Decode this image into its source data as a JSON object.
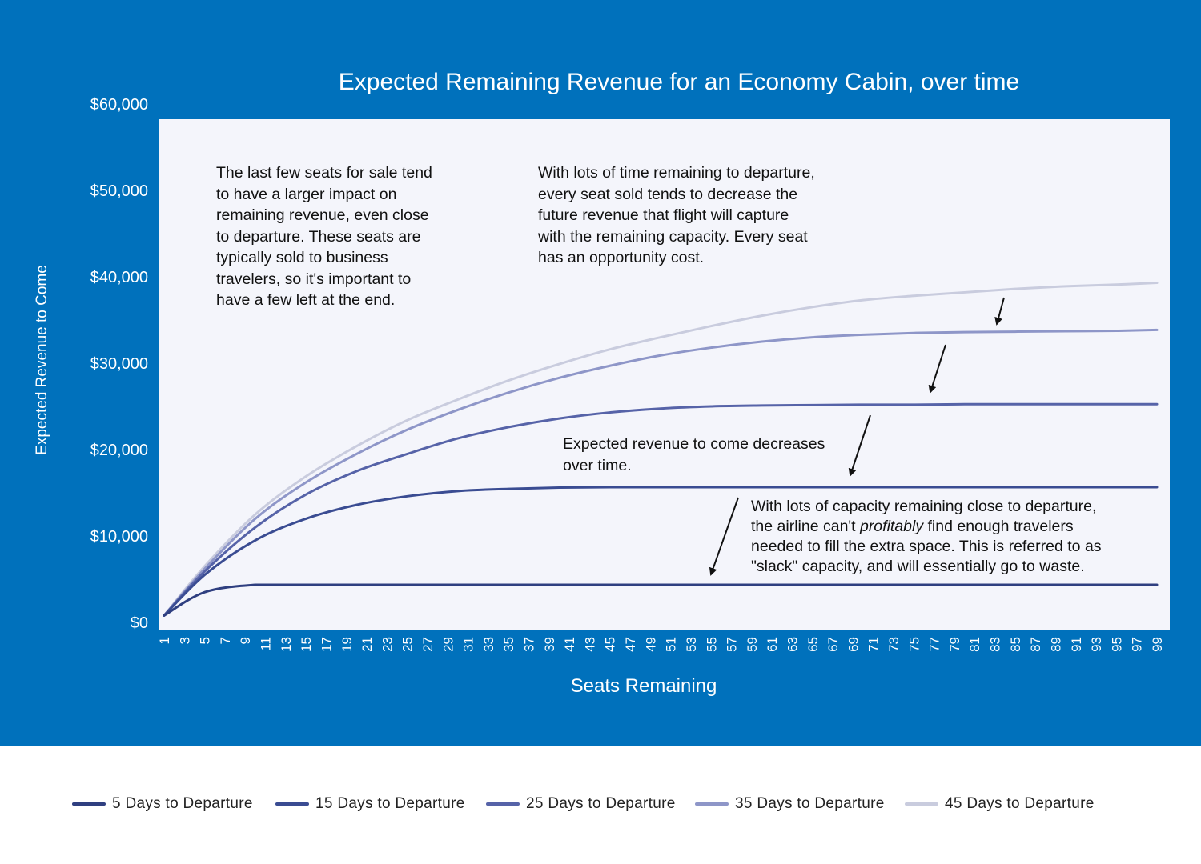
{
  "chart_data": {
    "type": "line",
    "title": "Expected Remaining Revenue for an Economy Cabin, over time",
    "xlabel": "Seats Remaining",
    "ylabel": "Expected Revenue to Come",
    "x_range": [
      1,
      99
    ],
    "x_tick_labels": [
      "1",
      "3",
      "5",
      "7",
      "9",
      "11",
      "13",
      "15",
      "17",
      "19",
      "21",
      "23",
      "25",
      "27",
      "29",
      "31",
      "33",
      "35",
      "37",
      "39",
      "41",
      "43",
      "45",
      "47",
      "49",
      "51",
      "53",
      "55",
      "57",
      "59",
      "61",
      "63",
      "65",
      "67",
      "69",
      "71",
      "73",
      "75",
      "77",
      "79",
      "81",
      "83",
      "85",
      "87",
      "89",
      "91",
      "93",
      "95",
      "97",
      "99"
    ],
    "ylim": [
      0,
      60000
    ],
    "y_ticks": [
      0,
      10000,
      20000,
      30000,
      40000,
      50000,
      60000
    ],
    "y_tick_labels": [
      "$0",
      "$10,000",
      "$20,000",
      "$30,000",
      "$40,000",
      "$50,000",
      "$60,000"
    ],
    "grid": false,
    "legend_position": "bottom",
    "x": [
      1,
      5,
      10,
      15,
      20,
      25,
      30,
      35,
      40,
      45,
      50,
      55,
      60,
      65,
      70,
      75,
      80,
      85,
      90,
      95,
      99
    ],
    "series": [
      {
        "name": "5 Days to Departure",
        "color": "#2f3f80",
        "values": [
          800,
          3500,
          4350,
          4350,
          4350,
          4350,
          4350,
          4350,
          4350,
          4350,
          4350,
          4350,
          4350,
          4350,
          4350,
          4350,
          4350,
          4350,
          4350,
          4350,
          4350
        ]
      },
      {
        "name": "15 Days to Departure",
        "color": "#3a4c92",
        "values": [
          800,
          5500,
          9500,
          12000,
          13600,
          14600,
          15200,
          15450,
          15600,
          15650,
          15650,
          15650,
          15650,
          15650,
          15650,
          15650,
          15650,
          15650,
          15650,
          15650,
          15650
        ]
      },
      {
        "name": "25 Days to Departure",
        "color": "#5663a8",
        "values": [
          800,
          5900,
          11000,
          14800,
          17500,
          19500,
          21300,
          22600,
          23600,
          24300,
          24750,
          25000,
          25100,
          25150,
          25200,
          25200,
          25250,
          25250,
          25250,
          25250,
          25250
        ]
      },
      {
        "name": "35 Days to Departure",
        "color": "#8e96c8",
        "values": [
          800,
          6200,
          12000,
          16200,
          19500,
          22300,
          24600,
          26600,
          28300,
          29700,
          30900,
          31800,
          32500,
          33000,
          33300,
          33500,
          33600,
          33650,
          33700,
          33750,
          33850
        ]
      },
      {
        "name": "45 Days to Departure",
        "color": "#c9ccde",
        "values": [
          800,
          6500,
          12500,
          16900,
          20400,
          23400,
          25800,
          28000,
          29900,
          31600,
          33000,
          34300,
          35500,
          36500,
          37300,
          37800,
          38200,
          38600,
          38900,
          39100,
          39300
        ]
      }
    ],
    "annotations": [
      {
        "lines": [
          "The last few seats for sale tend",
          "to have a larger impact on",
          "remaining revenue, even close",
          "to departure. These seats are",
          "typically sold to business",
          "travelers, so it's important to",
          "have a few left at the end."
        ]
      },
      {
        "lines": [
          "With lots of time remaining to departure,",
          "every seat sold tends to decrease the",
          "future revenue that flight will capture",
          "with the remaining capacity. Every seat",
          "has an opportunity cost."
        ]
      },
      {
        "lines": [
          "Expected revenue to come decreases",
          "over time."
        ]
      },
      {
        "line1": "With lots of capacity remaining close to departure,",
        "line2_before": "the airline can't ",
        "line2_emphasis": "profitably",
        "line2_after": " find enough travelers",
        "line3": "needed to fill the extra space. This is referred to as",
        "line4": "\"slack\" capacity, and will essentially go to waste."
      }
    ]
  }
}
